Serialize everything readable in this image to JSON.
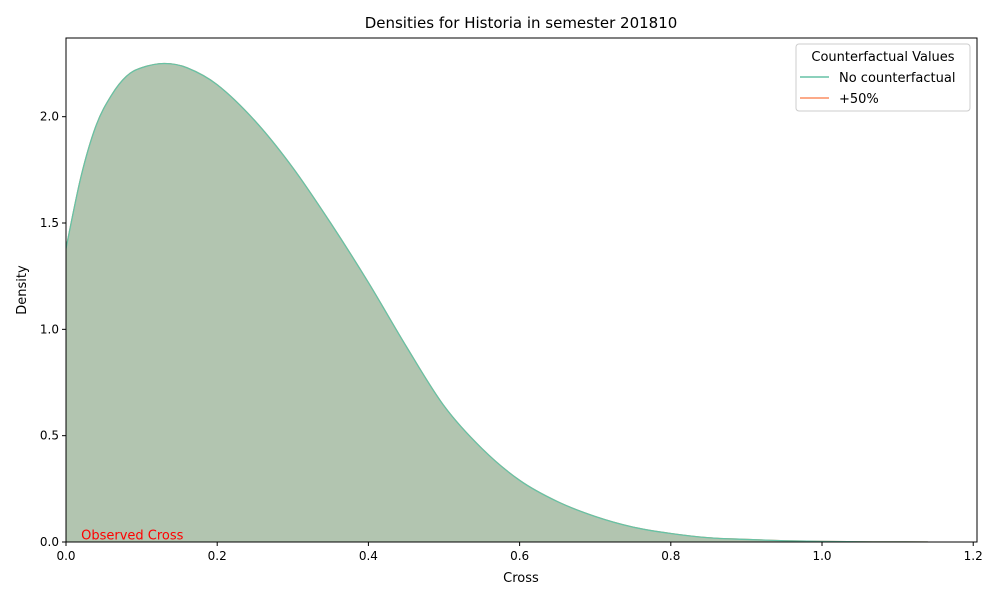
{
  "chart_data": {
    "type": "area",
    "title": "Densities for Historia in semester 201810",
    "xlabel": "Cross",
    "ylabel": "Density",
    "xlim": [
      0.0,
      1.205
    ],
    "ylim": [
      0.0,
      2.37
    ],
    "x_ticks": [
      0.0,
      0.2,
      0.4,
      0.6,
      0.8,
      1.0,
      1.2
    ],
    "x_tick_labels": [
      "0.0",
      "0.2",
      "0.4",
      "0.6",
      "0.8",
      "1.0",
      "1.2"
    ],
    "y_ticks": [
      0.0,
      0.5,
      1.0,
      1.5,
      2.0
    ],
    "y_tick_labels": [
      "0.0",
      "0.5",
      "1.0",
      "1.5",
      "2.0"
    ],
    "grid": false,
    "legend": {
      "title": "Counterfactual Values",
      "placement": "top-right",
      "entries": [
        {
          "label": "No counterfactual",
          "color": "#66c2a5"
        },
        {
          "label": "+50%",
          "color": "#fc8d62"
        }
      ]
    },
    "annotation": {
      "text": "Observed Cross",
      "x": 0.02,
      "y": 0.03,
      "color": "#ff0000"
    },
    "series": [
      {
        "name": "No counterfactual",
        "color": "#66c2a5",
        "fill": "#b2c5b0",
        "x": [
          0.0,
          0.02,
          0.04,
          0.06,
          0.08,
          0.1,
          0.13,
          0.16,
          0.2,
          0.25,
          0.3,
          0.35,
          0.4,
          0.45,
          0.5,
          0.55,
          0.6,
          0.65,
          0.7,
          0.75,
          0.8,
          0.85,
          0.9,
          0.95,
          1.0,
          1.05,
          1.1,
          1.14
        ],
        "values": [
          1.38,
          1.72,
          1.96,
          2.1,
          2.19,
          2.23,
          2.25,
          2.23,
          2.15,
          1.98,
          1.76,
          1.5,
          1.22,
          0.92,
          0.64,
          0.44,
          0.29,
          0.19,
          0.12,
          0.07,
          0.04,
          0.02,
          0.012,
          0.006,
          0.003,
          0.001,
          0.0005,
          0.0
        ]
      },
      {
        "name": "+50%",
        "color": "#fc8d62",
        "x": [
          0.0,
          0.02,
          0.04,
          0.06,
          0.08,
          0.1,
          0.13,
          0.16,
          0.2,
          0.25,
          0.3,
          0.35,
          0.4,
          0.45,
          0.5,
          0.55,
          0.6,
          0.65,
          0.7,
          0.75,
          0.8,
          0.85,
          0.9,
          0.95,
          1.0,
          1.05,
          1.1,
          1.14
        ],
        "values": [
          1.38,
          1.72,
          1.96,
          2.1,
          2.19,
          2.23,
          2.25,
          2.23,
          2.15,
          1.98,
          1.76,
          1.5,
          1.22,
          0.92,
          0.64,
          0.44,
          0.29,
          0.19,
          0.12,
          0.07,
          0.04,
          0.02,
          0.012,
          0.006,
          0.003,
          0.001,
          0.0005,
          0.0
        ]
      }
    ]
  }
}
